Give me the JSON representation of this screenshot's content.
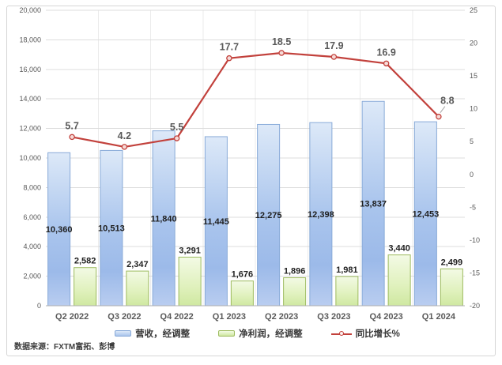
{
  "chart_data": {
    "type": "combo",
    "categories": [
      "Q2 2022",
      "Q3 2022",
      "Q4 2022",
      "Q1 2023",
      "Q2 2023",
      "Q3 2023",
      "Q4 2023",
      "Q1 2024"
    ],
    "series": [
      {
        "name": "营收，经调整",
        "type": "bar",
        "axis": "left",
        "values": [
          10360,
          10513,
          11840,
          11445,
          12275,
          12398,
          13837,
          12453
        ],
        "labels": [
          "10,360",
          "10,513",
          "11,840",
          "11,445",
          "12,275",
          "12,398",
          "13,837",
          "12,453"
        ],
        "label_position": "inside-center",
        "label_color": "#1f1f1f",
        "border": "#88aad8",
        "gradient": [
          {
            "offset": "0%",
            "color": "#dde9f8"
          },
          {
            "offset": "50%",
            "color": "#aac5ed"
          },
          {
            "offset": "78%",
            "color": "#9cbae9"
          },
          {
            "offset": "100%",
            "color": "#b9cdf0"
          }
        ]
      },
      {
        "name": "净利润，经调整",
        "type": "bar",
        "axis": "left",
        "values": [
          2582,
          2347,
          3291,
          1676,
          1896,
          1981,
          3440,
          2499
        ],
        "labels": [
          "2,582",
          "2,347",
          "3,291",
          "1,676",
          "1,896",
          "1,981",
          "3,440",
          "2,499"
        ],
        "label_position": "above",
        "label_color": "#1f1f1f",
        "border": "#9dbb5f",
        "gradient": [
          {
            "offset": "0%",
            "color": "#f3fae5"
          },
          {
            "offset": "60%",
            "color": "#e0f1bd"
          },
          {
            "offset": "100%",
            "color": "#cfe8a1"
          }
        ]
      },
      {
        "name": "同比增长%",
        "type": "line",
        "axis": "right",
        "values": [
          5.7,
          4.2,
          5.5,
          17.7,
          18.5,
          17.9,
          16.9,
          8.8
        ],
        "labels": [
          "5.7",
          "4.2",
          "5.5",
          "17.7",
          "18.5",
          "17.9",
          "16.9",
          "8.8"
        ],
        "color": "#c2413c",
        "marker_fill": "#f6dbd8",
        "label_color": "#595959"
      }
    ],
    "left_axis": {
      "min": 0,
      "max": 20000,
      "step": 2000,
      "ticks": [
        "20,000",
        "18,000",
        "16,000",
        "14,000",
        "12,000",
        "10,000",
        "8,000",
        "6,000",
        "4,000",
        "2,000",
        "0"
      ]
    },
    "right_axis": {
      "min": -20,
      "max": 25,
      "step": 5,
      "ticks": [
        "25",
        "20",
        "15",
        "10",
        "5",
        "0",
        "-5",
        "-10",
        "-15",
        "-20"
      ]
    },
    "grid": true,
    "legend_position": "bottom",
    "colors": {
      "hgrid": "#dcdcdc",
      "vgrid": "#ebebeb",
      "axis_line": "#b0b0b0",
      "tick": "#595959",
      "category": "#595959",
      "leader": "#a6a6a6",
      "frame_border": "#d6d6d6"
    },
    "source_note": "数据来源：FXTM富拓、彭博"
  }
}
